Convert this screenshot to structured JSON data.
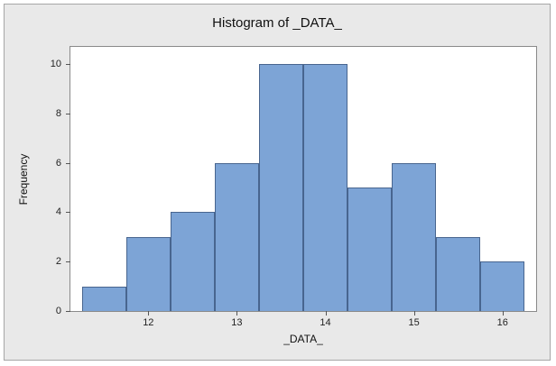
{
  "chart_data": {
    "type": "bar",
    "subtype": "histogram",
    "title": "Histogram of _DATA_",
    "xlabel": "_DATA_",
    "ylabel": "Frequency",
    "bin_centers": [
      11.5,
      12,
      12.5,
      13,
      13.5,
      14,
      14.5,
      15,
      15.5,
      16
    ],
    "bin_width": 0.5,
    "values": [
      1,
      3,
      4,
      6,
      10,
      10,
      5,
      6,
      3,
      2
    ],
    "x_ticks": [
      12,
      13,
      14,
      15,
      16
    ],
    "y_ticks": [
      0,
      2,
      4,
      6,
      8,
      10
    ],
    "xlim": [
      11.12,
      16.38
    ],
    "ylim": [
      0,
      10.7
    ],
    "legend": "none",
    "grid": "off",
    "colors": {
      "bar_fill": "#7da4d6",
      "bar_border": "#48658f",
      "plot_bg": "#ffffff",
      "figure_bg": "#e9e9e9",
      "figure_border": "#a6a6a6",
      "axis": "#8a8a8a",
      "tick": "#555555",
      "text": "#111111"
    }
  }
}
